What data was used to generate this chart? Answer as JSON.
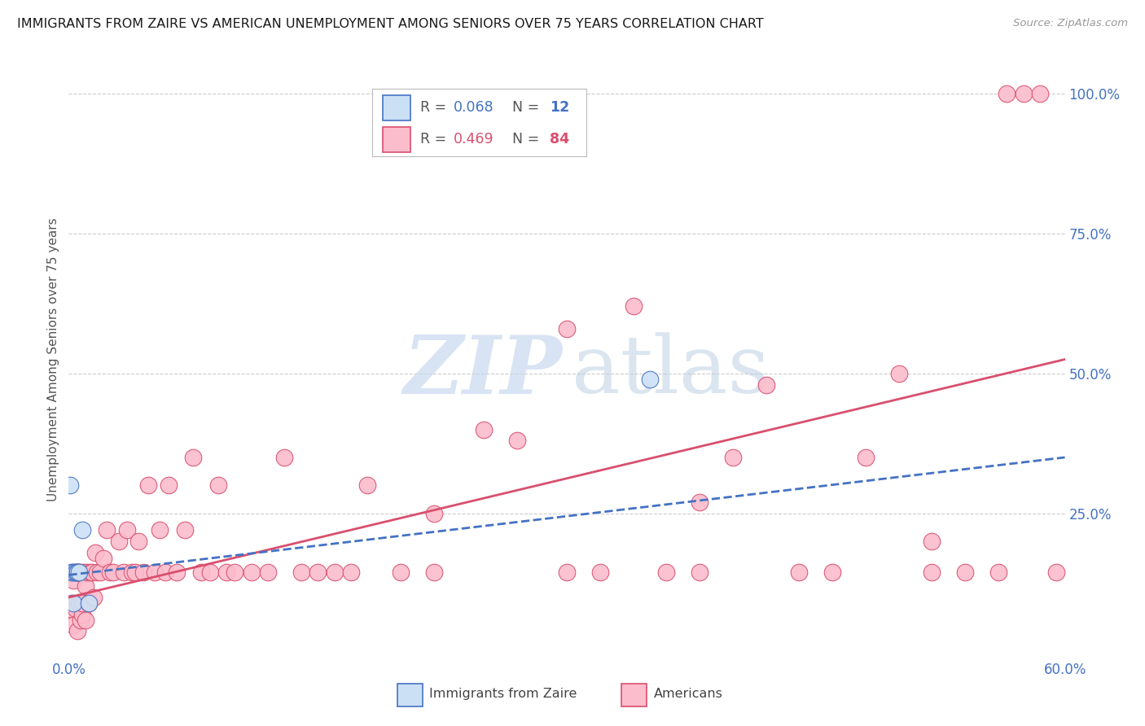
{
  "title": "IMMIGRANTS FROM ZAIRE VS AMERICAN UNEMPLOYMENT AMONG SENIORS OVER 75 YEARS CORRELATION CHART",
  "source": "Source: ZipAtlas.com",
  "ylabel": "Unemployment Among Seniors over 75 years",
  "right_yticks": [
    "100.0%",
    "75.0%",
    "50.0%",
    "25.0%"
  ],
  "right_ytick_vals": [
    1.0,
    0.75,
    0.5,
    0.25
  ],
  "legend_zaire_r": "0.068",
  "legend_zaire_n": "12",
  "legend_american_r": "0.469",
  "legend_american_n": "84",
  "color_zaire_fill": "#cce0f5",
  "color_zaire_edge": "#4472c4",
  "color_american_fill": "#fbbccc",
  "color_american_edge": "#d94f6e",
  "color_trend_zaire": "#4472c4",
  "color_trend_american": "#d94f6e",
  "color_grid": "#cccccc",
  "color_right_tick": "#4472c4",
  "xlim": [
    0.0,
    0.6
  ],
  "ylim": [
    0.0,
    1.05
  ],
  "zaire_x": [
    0.001,
    0.002,
    0.003,
    0.003,
    0.004,
    0.004,
    0.005,
    0.005,
    0.006,
    0.008,
    0.012,
    0.35
  ],
  "zaire_y": [
    0.3,
    0.145,
    0.09,
    0.145,
    0.145,
    0.145,
    0.145,
    0.145,
    0.145,
    0.22,
    0.09,
    0.49
  ],
  "americans_x": [
    0.001,
    0.002,
    0.002,
    0.003,
    0.003,
    0.004,
    0.004,
    0.005,
    0.005,
    0.006,
    0.006,
    0.007,
    0.007,
    0.008,
    0.008,
    0.009,
    0.01,
    0.01,
    0.011,
    0.012,
    0.013,
    0.014,
    0.015,
    0.016,
    0.017,
    0.019,
    0.021,
    0.023,
    0.025,
    0.027,
    0.03,
    0.033,
    0.035,
    0.038,
    0.04,
    0.042,
    0.045,
    0.048,
    0.052,
    0.055,
    0.058,
    0.06,
    0.065,
    0.07,
    0.075,
    0.08,
    0.085,
    0.09,
    0.095,
    0.1,
    0.11,
    0.12,
    0.13,
    0.14,
    0.15,
    0.16,
    0.17,
    0.18,
    0.2,
    0.22,
    0.25,
    0.27,
    0.3,
    0.32,
    0.34,
    0.36,
    0.38,
    0.4,
    0.42,
    0.44,
    0.46,
    0.48,
    0.5,
    0.52,
    0.54,
    0.56,
    0.565,
    0.575,
    0.585,
    0.595,
    0.3,
    0.22,
    0.38,
    0.52
  ],
  "americans_y": [
    0.08,
    0.09,
    0.145,
    0.05,
    0.13,
    0.145,
    0.08,
    0.04,
    0.145,
    0.09,
    0.145,
    0.06,
    0.145,
    0.07,
    0.09,
    0.145,
    0.06,
    0.12,
    0.145,
    0.09,
    0.145,
    0.145,
    0.1,
    0.18,
    0.145,
    0.145,
    0.17,
    0.22,
    0.145,
    0.145,
    0.2,
    0.145,
    0.22,
    0.145,
    0.145,
    0.2,
    0.145,
    0.3,
    0.145,
    0.22,
    0.145,
    0.3,
    0.145,
    0.22,
    0.35,
    0.145,
    0.145,
    0.3,
    0.145,
    0.145,
    0.145,
    0.145,
    0.35,
    0.145,
    0.145,
    0.145,
    0.145,
    0.3,
    0.145,
    0.145,
    0.4,
    0.38,
    0.145,
    0.145,
    0.62,
    0.145,
    0.145,
    0.35,
    0.48,
    0.145,
    0.145,
    0.35,
    0.5,
    0.145,
    0.145,
    0.145,
    1.0,
    1.0,
    1.0,
    0.145,
    0.58,
    0.25,
    0.27,
    0.2
  ],
  "trend_zaire_x0": 0.0,
  "trend_zaire_y0": 0.14,
  "trend_zaire_x1": 0.6,
  "trend_zaire_y1": 0.35,
  "trend_am_x0": 0.0,
  "trend_am_y0": 0.1,
  "trend_am_x1": 0.6,
  "trend_am_y1": 0.525,
  "background_color": "#ffffff"
}
